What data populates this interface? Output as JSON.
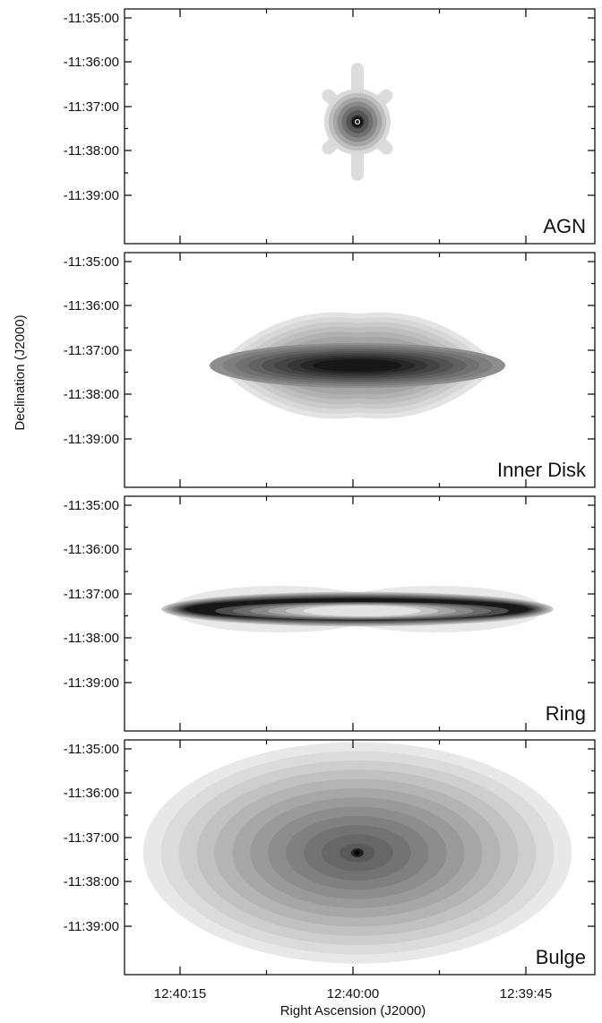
{
  "chart_data": {
    "type": "heatmap",
    "title": "",
    "xlabel": "Right Ascension (J2000)",
    "ylabel": "Declination (J2000)",
    "x_ticks": [
      "12:40:15",
      "12:40:00",
      "12:39:45"
    ],
    "y_ticks": [
      "-11:35:00",
      "-11:36:00",
      "-11:37:00",
      "-11:38:00",
      "-11:39:00"
    ],
    "center": {
      "ra": "12:39:59.8",
      "dec": "-11:37:23"
    },
    "colormap": "grayscale, darker = brighter emission",
    "panels": [
      {
        "label": "AGN",
        "component": "point source",
        "shape": "compact six-armed star-like PSF",
        "extent_arcsec": {
          "ra": 70,
          "dec": 150
        }
      },
      {
        "label": "Inner Disk",
        "component": "disk",
        "shape": "elongated ellipse, dark core band",
        "extent_arcsec": {
          "ra": 400,
          "dec": 140
        }
      },
      {
        "label": "Ring",
        "component": "ring",
        "shape": "thin edge-on ring, light centre",
        "extent_arcsec": {
          "ra": 530,
          "dec": 60
        }
      },
      {
        "label": "Bulge",
        "component": "bulge",
        "shape": "large concentric ellipses",
        "extent_arcsec": {
          "ra": 580,
          "dec": 300
        }
      }
    ]
  }
}
